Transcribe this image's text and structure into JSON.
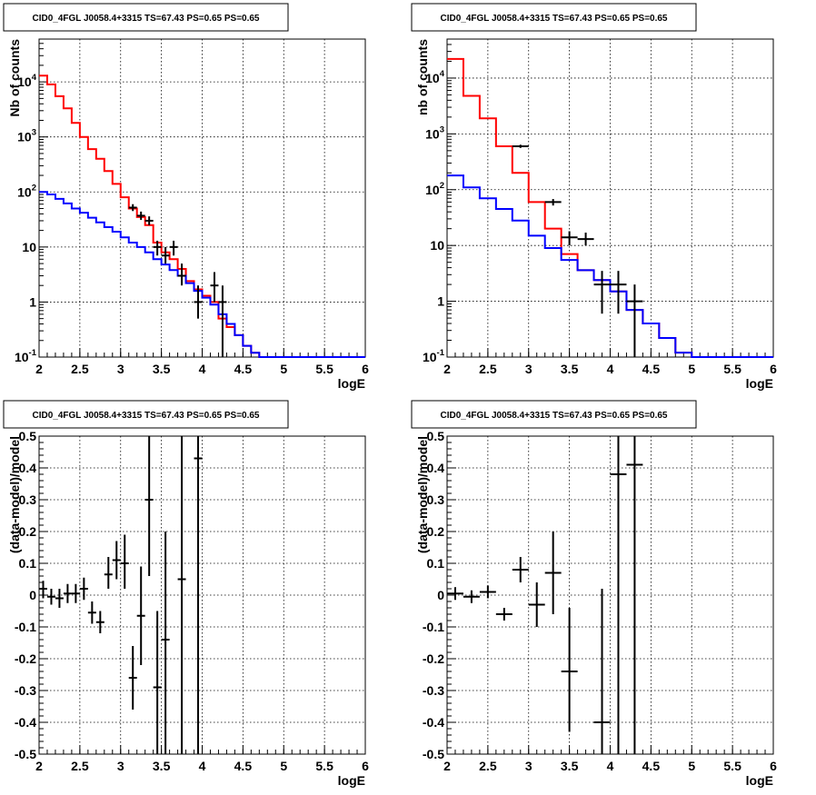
{
  "colors": {
    "model_total": "#ff0000",
    "model_background": "#0000ff",
    "data": "#000000"
  },
  "chart_data": [
    {
      "type": "step",
      "title": "CID0_4FGL J0058.4+3315 TS=67.43 PS=0.65 PS=0.65",
      "xlabel": "logE",
      "ylabel": "Nb of counts",
      "xlim": [
        2,
        6
      ],
      "ylim": [
        0.1,
        60000
      ],
      "yscale": "log",
      "grid": true,
      "xticks": [
        "2",
        "2.5",
        "3",
        "3.5",
        "4",
        "4.5",
        "5",
        "5.5",
        "6"
      ],
      "yticks": [
        {
          "base": "10",
          "exp": "-1",
          "v": 0.1
        },
        {
          "base": "1",
          "exp": "",
          "v": 1
        },
        {
          "base": "10",
          "exp": "",
          "v": 10
        },
        {
          "base": "10",
          "exp": "2",
          "v": 100
        },
        {
          "base": "10",
          "exp": "3",
          "v": 1000
        },
        {
          "base": "10",
          "exp": "4",
          "v": 10000
        }
      ],
      "bin_edges": [
        2.0,
        2.1,
        2.2,
        2.3,
        2.4,
        2.5,
        2.6,
        2.7,
        2.8,
        2.9,
        3.0,
        3.1,
        3.2,
        3.3,
        3.4,
        3.5,
        3.6,
        3.7,
        3.8,
        3.9,
        4.0,
        4.1,
        4.2,
        4.3,
        4.4,
        4.5,
        4.6,
        4.7,
        4.8,
        4.9,
        5.0,
        5.1,
        5.2,
        5.3,
        5.4,
        5.5,
        5.6,
        5.7,
        5.8,
        5.9,
        6.0
      ],
      "series": [
        {
          "role": "model_total",
          "values": [
            13000,
            9000,
            5500,
            3300,
            1800,
            1000,
            600,
            400,
            240,
            140,
            80,
            50,
            35,
            25,
            12,
            8,
            6,
            4,
            2.4,
            1.7,
            1.3,
            1.0,
            0.5,
            0.35,
            0.25,
            0.16,
            0.12,
            0.1,
            0.1,
            0.1,
            0.1,
            0.1,
            0.1,
            0.1,
            0.1,
            0.1,
            0.1,
            0.1,
            0.1,
            0.1
          ]
        },
        {
          "role": "model_background",
          "values": [
            100,
            90,
            75,
            62,
            50,
            42,
            34,
            28,
            23,
            19,
            15,
            12,
            10,
            8,
            6,
            4.8,
            3.8,
            3.0,
            2.2,
            1.6,
            1.2,
            0.9,
            0.6,
            0.4,
            0.25,
            0.16,
            0.12,
            0.1,
            0.1,
            0.1,
            0.1,
            0.1,
            0.1,
            0.1,
            0.1,
            0.1,
            0.1,
            0.1,
            0.1,
            0.1
          ]
        }
      ],
      "data_points": [
        {
          "x": 3.15,
          "y": 52,
          "lo": 45,
          "hi": 60
        },
        {
          "x": 3.25,
          "y": 37,
          "lo": 31,
          "hi": 44
        },
        {
          "x": 3.35,
          "y": 30,
          "lo": 25,
          "hi": 36
        },
        {
          "x": 3.45,
          "y": 10,
          "lo": 7,
          "hi": 13
        },
        {
          "x": 3.55,
          "y": 7,
          "lo": 5,
          "hi": 10
        },
        {
          "x": 3.65,
          "y": 10,
          "lo": 7,
          "hi": 13
        },
        {
          "x": 3.75,
          "y": 3,
          "lo": 2,
          "hi": 5
        },
        {
          "x": 3.95,
          "y": 1,
          "lo": 0.5,
          "hi": 2
        },
        {
          "x": 4.15,
          "y": 2,
          "lo": 1,
          "hi": 3.5
        },
        {
          "x": 4.25,
          "y": 1,
          "lo": 0.1,
          "hi": 2
        }
      ]
    },
    {
      "type": "step",
      "title": "CID0_4FGL J0058.4+3315 TS=67.43 PS=0.65 PS=0.65",
      "xlabel": "logE",
      "ylabel": "nb of counts",
      "xlim": [
        2,
        6
      ],
      "ylim": [
        0.1,
        50000
      ],
      "yscale": "log",
      "grid": true,
      "xticks": [
        "2",
        "2.5",
        "3",
        "3.5",
        "4",
        "4.5",
        "5",
        "5.5",
        "6"
      ],
      "yticks": [
        {
          "base": "10",
          "exp": "-1",
          "v": 0.1
        },
        {
          "base": "1",
          "exp": "",
          "v": 1
        },
        {
          "base": "10",
          "exp": "",
          "v": 10
        },
        {
          "base": "10",
          "exp": "2",
          "v": 100
        },
        {
          "base": "10",
          "exp": "3",
          "v": 1000
        },
        {
          "base": "10",
          "exp": "4",
          "v": 10000
        }
      ],
      "bin_edges": [
        2.0,
        2.2,
        2.4,
        2.6,
        2.8,
        3.0,
        3.2,
        3.4,
        3.6,
        3.8,
        4.0,
        4.2,
        4.4,
        4.6,
        4.8,
        5.0,
        5.2,
        5.4,
        5.6,
        5.8,
        6.0
      ],
      "series": [
        {
          "role": "model_total",
          "values": [
            22000,
            4800,
            1900,
            600,
            200,
            60,
            20,
            7,
            3.6,
            2.4,
            1.5,
            0.7,
            0.4,
            0.22,
            0.12,
            0.1,
            0.1,
            0.1,
            0.1,
            0.1
          ]
        },
        {
          "role": "model_background",
          "values": [
            180,
            110,
            70,
            45,
            28,
            15,
            9,
            5.5,
            3.6,
            2.4,
            1.5,
            0.7,
            0.4,
            0.22,
            0.12,
            0.1,
            0.1,
            0.1,
            0.1,
            0.1
          ]
        }
      ],
      "data_points": [
        {
          "x": 2.9,
          "y": 600,
          "lo": 560,
          "hi": 640
        },
        {
          "x": 3.3,
          "y": 60,
          "lo": 52,
          "hi": 68
        },
        {
          "x": 3.5,
          "y": 14,
          "lo": 10,
          "hi": 18
        },
        {
          "x": 3.7,
          "y": 13,
          "lo": 10,
          "hi": 17
        },
        {
          "x": 3.9,
          "y": 2,
          "lo": 0.6,
          "hi": 3.5
        },
        {
          "x": 4.1,
          "y": 2,
          "lo": 0.6,
          "hi": 3.5
        },
        {
          "x": 4.3,
          "y": 1,
          "lo": 0.1,
          "hi": 2
        }
      ]
    },
    {
      "type": "scatter",
      "title": "CID0_4FGL J0058.4+3315 TS=67.43 PS=0.65 PS=0.65",
      "xlabel": "logE",
      "ylabel": "(data-model)/model",
      "xlim": [
        2,
        6
      ],
      "ylim": [
        -0.5,
        0.5
      ],
      "grid": true,
      "xticks": [
        "2",
        "2.5",
        "3",
        "3.5",
        "4",
        "4.5",
        "5",
        "5.5",
        "6"
      ],
      "yticks": [
        "-0.5",
        "-0.4",
        "-0.3",
        "-0.2",
        "-0.1",
        "0",
        "0.1",
        "0.2",
        "0.3",
        "0.4",
        "0.5"
      ],
      "bin_width": 0.1,
      "data_points": [
        {
          "x": 2.05,
          "y": 0.02,
          "lo": -0.01,
          "hi": 0.045
        },
        {
          "x": 2.15,
          "y": -0.005,
          "lo": -0.03,
          "hi": 0.02
        },
        {
          "x": 2.25,
          "y": -0.01,
          "lo": -0.04,
          "hi": 0.02
        },
        {
          "x": 2.35,
          "y": 0.005,
          "lo": -0.025,
          "hi": 0.035
        },
        {
          "x": 2.45,
          "y": 0.005,
          "lo": -0.025,
          "hi": 0.035
        },
        {
          "x": 2.55,
          "y": 0.02,
          "lo": -0.015,
          "hi": 0.055
        },
        {
          "x": 2.65,
          "y": -0.055,
          "lo": -0.09,
          "hi": -0.02
        },
        {
          "x": 2.75,
          "y": -0.085,
          "lo": -0.12,
          "hi": -0.05
        },
        {
          "x": 2.85,
          "y": 0.065,
          "lo": 0.02,
          "hi": 0.12
        },
        {
          "x": 2.95,
          "y": 0.11,
          "lo": 0.05,
          "hi": 0.17
        },
        {
          "x": 3.05,
          "y": 0.1,
          "lo": 0.02,
          "hi": 0.19
        },
        {
          "x": 3.15,
          "y": -0.26,
          "lo": -0.36,
          "hi": -0.16
        },
        {
          "x": 3.25,
          "y": -0.065,
          "lo": -0.22,
          "hi": 0.09
        },
        {
          "x": 3.35,
          "y": 0.3,
          "lo": 0.06,
          "hi": 0.5
        },
        {
          "x": 3.45,
          "y": -0.29,
          "lo": -0.5,
          "hi": -0.05
        },
        {
          "x": 3.55,
          "y": -0.14,
          "lo": -0.5,
          "hi": 0.2
        },
        {
          "x": 3.75,
          "y": 0.05,
          "lo": -0.5,
          "hi": 0.5
        },
        {
          "x": 3.95,
          "y": 0.43,
          "lo": -0.5,
          "hi": 0.5
        }
      ]
    },
    {
      "type": "scatter",
      "title": "CID0_4FGL J0058.4+3315 TS=67.43 PS=0.65 PS=0.65",
      "xlabel": "logE",
      "ylabel": "(data-model)/model",
      "xlim": [
        2,
        6
      ],
      "ylim": [
        -0.5,
        0.5
      ],
      "grid": true,
      "xticks": [
        "2",
        "2.5",
        "3",
        "3.5",
        "4",
        "4.5",
        "5",
        "5.5",
        "6"
      ],
      "yticks": [
        "-0.5",
        "-0.4",
        "-0.3",
        "-0.2",
        "-0.1",
        "0",
        "0.1",
        "0.2",
        "0.3",
        "0.4",
        "0.5"
      ],
      "bin_width": 0.2,
      "data_points": [
        {
          "x": 2.1,
          "y": 0.005,
          "lo": -0.015,
          "hi": 0.025
        },
        {
          "x": 2.3,
          "y": -0.005,
          "lo": -0.025,
          "hi": 0.015
        },
        {
          "x": 2.5,
          "y": 0.01,
          "lo": -0.01,
          "hi": 0.03
        },
        {
          "x": 2.7,
          "y": -0.06,
          "lo": -0.08,
          "hi": -0.04
        },
        {
          "x": 2.9,
          "y": 0.08,
          "lo": 0.04,
          "hi": 0.12
        },
        {
          "x": 3.1,
          "y": -0.03,
          "lo": -0.1,
          "hi": 0.04
        },
        {
          "x": 3.3,
          "y": 0.07,
          "lo": -0.06,
          "hi": 0.2
        },
        {
          "x": 3.5,
          "y": -0.24,
          "lo": -0.43,
          "hi": -0.04
        },
        {
          "x": 3.9,
          "y": -0.4,
          "lo": -0.5,
          "hi": 0.02
        },
        {
          "x": 4.1,
          "y": 0.38,
          "lo": -0.5,
          "hi": 0.5
        },
        {
          "x": 4.3,
          "y": 0.41,
          "lo": -0.5,
          "hi": 0.5
        }
      ]
    }
  ]
}
